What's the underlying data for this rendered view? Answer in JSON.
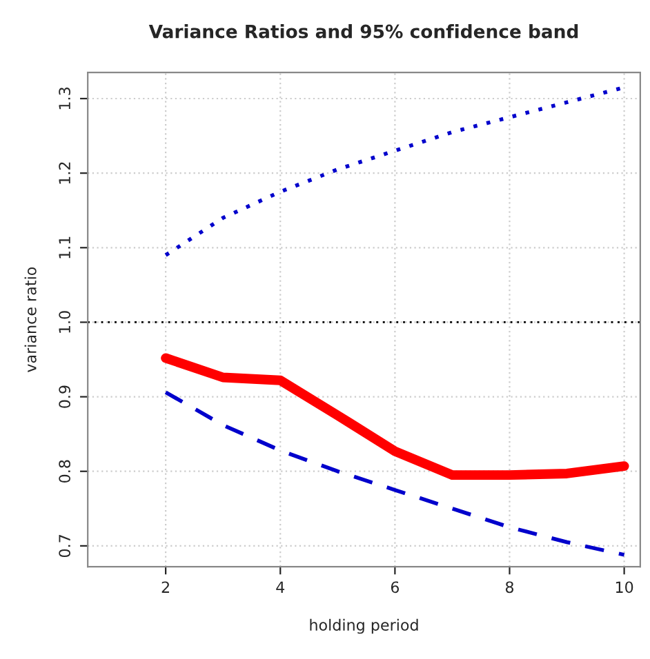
{
  "chart_data": {
    "type": "line",
    "title": "Variance Ratios and 95% confidence band",
    "xlabel": "holding period",
    "ylabel": "variance ratio",
    "x": [
      2,
      3,
      4,
      5,
      6,
      7,
      8,
      9,
      10
    ],
    "series": [
      {
        "color": "#ff0000",
        "line_style": "solid",
        "values": [
          0.952,
          0.926,
          0.922,
          0.875,
          0.827,
          0.795,
          0.795,
          0.797,
          0.807
        ]
      },
      {
        "color": "#0000cc",
        "line_style": "dotted",
        "values": [
          1.09,
          1.14,
          1.175,
          1.205,
          1.23,
          1.255,
          1.275,
          1.295,
          1.315
        ]
      },
      {
        "color": "#0000cc",
        "line_style": "dashed",
        "values": [
          0.906,
          0.862,
          0.828,
          0.8,
          0.775,
          0.75,
          0.725,
          0.705,
          0.688
        ]
      }
    ],
    "ref_lines": [
      {
        "axis": "y",
        "value": 1.0,
        "color": "#000000",
        "line_style": "dotted"
      }
    ],
    "xlim": [
      0.64,
      10.28
    ],
    "ylim": [
      0.672,
      1.335
    ],
    "xticks": [
      2,
      4,
      6,
      8,
      10
    ],
    "yticks": [
      0.7,
      0.8,
      0.9,
      {
        "value": 1.0,
        "label": "1.0"
      },
      1.1,
      1.2,
      1.3
    ],
    "grid": true,
    "legend": false,
    "marker": "none"
  }
}
